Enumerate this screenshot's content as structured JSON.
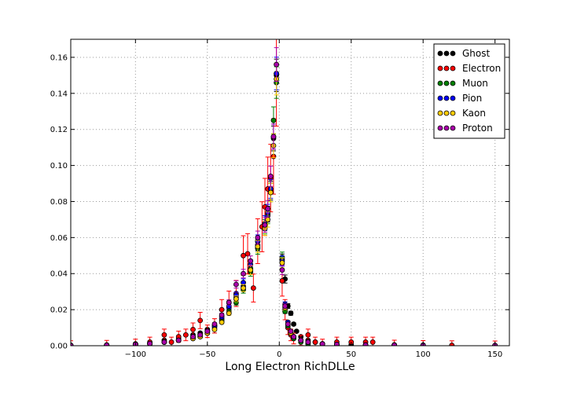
{
  "chart_data": {
    "type": "scatter",
    "title": "",
    "xlabel": "Long Electron RichDLLe",
    "ylabel": "",
    "xlim": [
      -145,
      160
    ],
    "ylim": [
      0,
      0.17
    ],
    "x_ticks": [
      -100,
      -50,
      0,
      50,
      100,
      150
    ],
    "y_ticks": [
      0.0,
      0.02,
      0.04,
      0.06,
      0.08,
      0.1,
      0.12,
      0.14,
      0.16
    ],
    "x_tick_labels": [
      "−100",
      "−50",
      "0",
      "50",
      "100",
      "150"
    ],
    "y_tick_labels": [
      "0.00",
      "0.02",
      "0.04",
      "0.06",
      "0.08",
      "0.10",
      "0.12",
      "0.14",
      "0.16"
    ],
    "grid": true,
    "legend_position": "top-right",
    "error_bars": true,
    "series": [
      {
        "name": "Ghost",
        "color": "#000000",
        "points": [
          [
            -145,
            0.0002
          ],
          [
            -120,
            0.0003
          ],
          [
            -100,
            0.0008
          ],
          [
            -90,
            0.0015
          ],
          [
            -80,
            0.003
          ],
          [
            -70,
            0.004
          ],
          [
            -60,
            0.006
          ],
          [
            -55,
            0.007
          ],
          [
            -50,
            0.009
          ],
          [
            -45,
            0.011
          ],
          [
            -40,
            0.015
          ],
          [
            -35,
            0.021
          ],
          [
            -30,
            0.027
          ],
          [
            -25,
            0.033
          ],
          [
            -20,
            0.043
          ],
          [
            -15,
            0.056
          ],
          [
            -10,
            0.068
          ],
          [
            -8,
            0.073
          ],
          [
            -6,
            0.086
          ],
          [
            -4,
            0.115
          ],
          [
            -2,
            0.15
          ],
          [
            2,
            0.048
          ],
          [
            4,
            0.037
          ],
          [
            6,
            0.022
          ],
          [
            8,
            0.018
          ],
          [
            10,
            0.012
          ],
          [
            12,
            0.008
          ],
          [
            15,
            0.005
          ],
          [
            20,
            0.003
          ],
          [
            25,
            0.002
          ],
          [
            30,
            0.001
          ],
          [
            40,
            0.0008
          ],
          [
            50,
            0.0005
          ],
          [
            60,
            0.0004
          ],
          [
            80,
            0.0003
          ],
          [
            100,
            0.0002
          ],
          [
            120,
            0.0001
          ],
          [
            150,
            0.0001
          ]
        ]
      },
      {
        "name": "Electron",
        "color": "#ff0000",
        "points": [
          [
            -145,
            0.0002
          ],
          [
            -120,
            0.0004
          ],
          [
            -100,
            0.001
          ],
          [
            -90,
            0.002
          ],
          [
            -80,
            0.006
          ],
          [
            -75,
            0.002
          ],
          [
            -70,
            0.005
          ],
          [
            -65,
            0.006
          ],
          [
            -60,
            0.009
          ],
          [
            -55,
            0.014
          ],
          [
            -50,
            0.008
          ],
          [
            -45,
            0.011
          ],
          [
            -40,
            0.02
          ],
          [
            -35,
            0.024
          ],
          [
            -30,
            0.029
          ],
          [
            -25,
            0.05
          ],
          [
            -22,
            0.051
          ],
          [
            -18,
            0.032
          ],
          [
            -15,
            0.058
          ],
          [
            -12,
            0.066
          ],
          [
            -10,
            0.077
          ],
          [
            -8,
            0.087
          ],
          [
            -6,
            0.093
          ],
          [
            -4,
            0.105
          ],
          [
            -2,
            0.151
          ],
          [
            2,
            0.036
          ],
          [
            4,
            0.02
          ],
          [
            6,
            0.01
          ],
          [
            8,
            0.006
          ],
          [
            10,
            0.004
          ],
          [
            15,
            0.003
          ],
          [
            20,
            0.006
          ],
          [
            25,
            0.002
          ],
          [
            30,
            0.001
          ],
          [
            40,
            0.002
          ],
          [
            50,
            0.002
          ],
          [
            60,
            0.002
          ],
          [
            65,
            0.002
          ],
          [
            80,
            0.0005
          ],
          [
            100,
            0.0003
          ],
          [
            120,
            0.0002
          ],
          [
            150,
            0.0001
          ]
        ]
      },
      {
        "name": "Muon",
        "color": "#008000",
        "points": [
          [
            -145,
            0.0002
          ],
          [
            -120,
            0.0003
          ],
          [
            -100,
            0.0007
          ],
          [
            -90,
            0.001
          ],
          [
            -80,
            0.002
          ],
          [
            -70,
            0.003
          ],
          [
            -60,
            0.004
          ],
          [
            -55,
            0.005
          ],
          [
            -50,
            0.007
          ],
          [
            -45,
            0.01
          ],
          [
            -40,
            0.014
          ],
          [
            -35,
            0.019
          ],
          [
            -30,
            0.024
          ],
          [
            -25,
            0.031
          ],
          [
            -20,
            0.041
          ],
          [
            -15,
            0.054
          ],
          [
            -10,
            0.066
          ],
          [
            -8,
            0.072
          ],
          [
            -6,
            0.085
          ],
          [
            -4,
            0.125
          ],
          [
            -2,
            0.146
          ],
          [
            2,
            0.049
          ],
          [
            4,
            0.019
          ],
          [
            6,
            0.011
          ],
          [
            8,
            0.007
          ],
          [
            10,
            0.004
          ],
          [
            15,
            0.002
          ],
          [
            20,
            0.001
          ],
          [
            30,
            0.0008
          ],
          [
            40,
            0.0005
          ],
          [
            60,
            0.0003
          ],
          [
            80,
            0.0002
          ],
          [
            100,
            0.0001
          ],
          [
            150,
            0.0001
          ]
        ]
      },
      {
        "name": "Pion",
        "color": "#0000ff",
        "points": [
          [
            -145,
            0.0002
          ],
          [
            -120,
            0.0003
          ],
          [
            -100,
            0.0008
          ],
          [
            -90,
            0.0012
          ],
          [
            -80,
            0.002
          ],
          [
            -70,
            0.003
          ],
          [
            -60,
            0.005
          ],
          [
            -55,
            0.006
          ],
          [
            -50,
            0.008
          ],
          [
            -45,
            0.011
          ],
          [
            -40,
            0.016
          ],
          [
            -35,
            0.022
          ],
          [
            -30,
            0.028
          ],
          [
            -25,
            0.035
          ],
          [
            -20,
            0.045
          ],
          [
            -15,
            0.058
          ],
          [
            -10,
            0.068
          ],
          [
            -8,
            0.074
          ],
          [
            -6,
            0.087
          ],
          [
            -4,
            0.116
          ],
          [
            -2,
            0.151
          ],
          [
            2,
            0.047
          ],
          [
            4,
            0.023
          ],
          [
            6,
            0.013
          ],
          [
            8,
            0.008
          ],
          [
            10,
            0.005
          ],
          [
            15,
            0.003
          ],
          [
            20,
            0.002
          ],
          [
            30,
            0.001
          ],
          [
            40,
            0.0007
          ],
          [
            60,
            0.0004
          ],
          [
            80,
            0.0003
          ],
          [
            100,
            0.0002
          ],
          [
            150,
            0.0001
          ]
        ]
      },
      {
        "name": "Kaon",
        "color": "#ffcc00",
        "points": [
          [
            -145,
            0.0002
          ],
          [
            -120,
            0.0003
          ],
          [
            -100,
            0.0007
          ],
          [
            -90,
            0.001
          ],
          [
            -80,
            0.002
          ],
          [
            -70,
            0.003
          ],
          [
            -60,
            0.004
          ],
          [
            -55,
            0.005
          ],
          [
            -50,
            0.007
          ],
          [
            -45,
            0.009
          ],
          [
            -40,
            0.013
          ],
          [
            -35,
            0.018
          ],
          [
            -30,
            0.026
          ],
          [
            -25,
            0.032
          ],
          [
            -20,
            0.042
          ],
          [
            -15,
            0.055
          ],
          [
            -10,
            0.065
          ],
          [
            -8,
            0.07
          ],
          [
            -6,
            0.085
          ],
          [
            -4,
            0.111
          ],
          [
            -2,
            0.148
          ],
          [
            2,
            0.046
          ],
          [
            4,
            0.021
          ],
          [
            6,
            0.012
          ],
          [
            8,
            0.007
          ],
          [
            10,
            0.005
          ],
          [
            15,
            0.003
          ],
          [
            20,
            0.002
          ],
          [
            30,
            0.001
          ],
          [
            40,
            0.0006
          ],
          [
            60,
            0.0003
          ],
          [
            80,
            0.0002
          ],
          [
            100,
            0.0001
          ],
          [
            150,
            0.0001
          ]
        ]
      },
      {
        "name": "Proton",
        "color": "#aa00aa",
        "points": [
          [
            -145,
            0.0002
          ],
          [
            -120,
            0.0003
          ],
          [
            -100,
            0.0008
          ],
          [
            -90,
            0.0012
          ],
          [
            -80,
            0.002
          ],
          [
            -70,
            0.003
          ],
          [
            -60,
            0.005
          ],
          [
            -55,
            0.006
          ],
          [
            -50,
            0.008
          ],
          [
            -45,
            0.012
          ],
          [
            -40,
            0.017
          ],
          [
            -35,
            0.024
          ],
          [
            -30,
            0.034
          ],
          [
            -25,
            0.04
          ],
          [
            -20,
            0.047
          ],
          [
            -15,
            0.06
          ],
          [
            -10,
            0.067
          ],
          [
            -8,
            0.076
          ],
          [
            -6,
            0.094
          ],
          [
            -4,
            0.116
          ],
          [
            -2,
            0.156
          ],
          [
            2,
            0.042
          ],
          [
            4,
            0.022
          ],
          [
            6,
            0.012
          ],
          [
            8,
            0.008
          ],
          [
            10,
            0.005
          ],
          [
            15,
            0.003
          ],
          [
            20,
            0.002
          ],
          [
            30,
            0.001
          ],
          [
            40,
            0.0007
          ],
          [
            60,
            0.0004
          ],
          [
            80,
            0.0003
          ],
          [
            100,
            0.0002
          ],
          [
            150,
            0.0001
          ]
        ]
      }
    ]
  }
}
